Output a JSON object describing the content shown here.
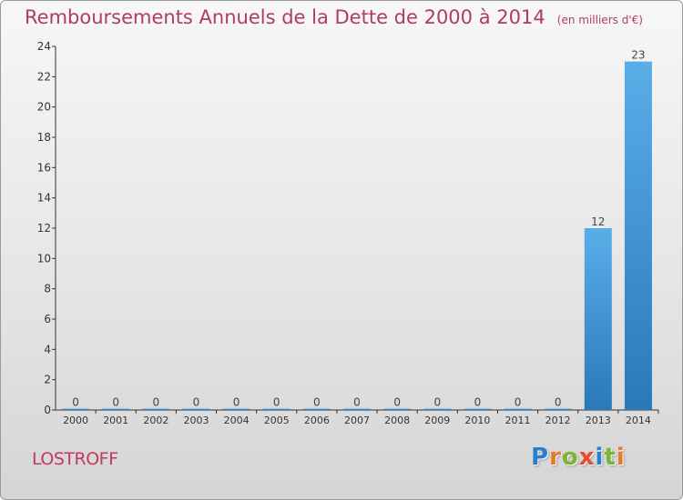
{
  "header": {
    "title": "Remboursements Annuels de la Dette de 2000 à 2014",
    "unit": "(en milliers d'€)"
  },
  "footer": {
    "commune": "LOSTROFF",
    "brand": {
      "letters": [
        "P",
        "r",
        "o",
        "x",
        "i",
        "t",
        "i"
      ],
      "colors": [
        "#2a7fc9",
        "#e37b2a",
        "#7bb531",
        "#e84b2d",
        "#2a7fc9",
        "#7bb531",
        "#e37b2a"
      ]
    }
  },
  "colors": {
    "bar_light": "#5aaee8",
    "bar_dark": "#2a78b9",
    "axis": "#333333",
    "title": "#b03a68"
  },
  "chart_data": {
    "type": "bar",
    "title": "Remboursements Annuels de la Dette de 2000 à 2014",
    "ylabel": "en milliers d'€",
    "xlabel": "",
    "categories": [
      "2000",
      "2001",
      "2002",
      "2003",
      "2004",
      "2005",
      "2006",
      "2007",
      "2008",
      "2009",
      "2010",
      "2011",
      "2012",
      "2013",
      "2014"
    ],
    "values": [
      0,
      0,
      0,
      0,
      0,
      0,
      0,
      0,
      0,
      0,
      0,
      0,
      0,
      12,
      23
    ],
    "data_labels": [
      "0",
      "0",
      "0",
      "0",
      "0",
      "0",
      "0",
      "0",
      "0",
      "0",
      "0",
      "0",
      "0",
      "12",
      "23"
    ],
    "ylim": [
      0,
      24
    ],
    "yticks": [
      0,
      2,
      4,
      6,
      8,
      10,
      12,
      14,
      16,
      18,
      20,
      22,
      24
    ],
    "grid": false,
    "legend": "none"
  }
}
